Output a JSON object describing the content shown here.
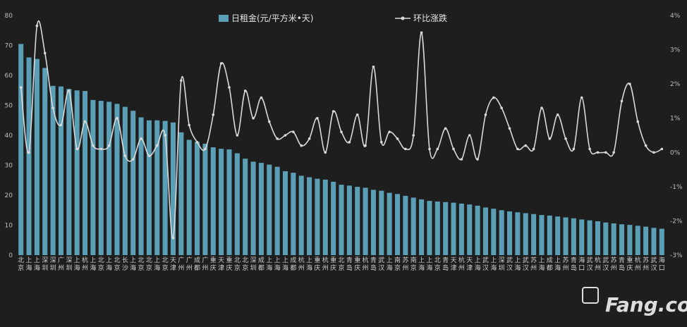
{
  "chart_data": {
    "type": "bar+line",
    "legend": [
      "日租金(元/平方米•天)",
      "环比涨跌"
    ],
    "legend_position": "top",
    "y_left": {
      "min": 0,
      "max": 80,
      "ticks": [
        "0",
        "10",
        "20",
        "30",
        "40",
        "50",
        "60",
        "70",
        "80"
      ]
    },
    "y_right": {
      "min": -3,
      "max": 4,
      "ticks": [
        "-3%",
        "-2%",
        "-1%",
        "0%",
        "1%",
        "2%",
        "3%",
        "4%"
      ]
    },
    "grid": false,
    "colors": {
      "bar": "#5b9fb6",
      "line": "#d9d9d9",
      "background": "#1e1e1e"
    },
    "categories": [
      "北京",
      "上海",
      "上海",
      "深圳",
      "深圳",
      "广州",
      "深圳",
      "上海",
      "杭州",
      "上海",
      "北京",
      "上海",
      "北京",
      "长沙",
      "上海",
      "北京",
      "北京",
      "上海",
      "北京",
      "天津",
      "广州",
      "广州",
      "成都",
      "广州",
      "重庆",
      "天津",
      "重庆",
      "北京",
      "北京",
      "深圳",
      "成都",
      "上海",
      "上海",
      "上海",
      "成都",
      "杭州",
      "上海",
      "重庆",
      "杭州",
      "重庆",
      "北京",
      "青岛",
      "重庆",
      "杭州",
      "青岛",
      "武汉",
      "上海",
      "南京",
      "苏州",
      "南京",
      "上海",
      "上海",
      "北京",
      "青岛",
      "天津",
      "杭州",
      "天津",
      "上海",
      "武汉",
      "上海",
      "深圳",
      "武汉",
      "上海",
      "武汉",
      "苏州",
      "上海",
      "成都",
      "上海",
      "苏州",
      "青岛",
      "海口",
      "武汉",
      "杭州",
      "武汉",
      "苏州",
      "青岛",
      "重庆",
      "杭州",
      "苏州",
      "武汉",
      "海口"
    ],
    "values": [
      70.5,
      66,
      65.5,
      62.5,
      56.5,
      56.3,
      55.5,
      55,
      54.8,
      51.8,
      51.5,
      51.2,
      50.5,
      49.5,
      48.2,
      46,
      45,
      45,
      44.8,
      44.3,
      41,
      38.5,
      37.8,
      37.2,
      36,
      35.5,
      35.3,
      34,
      32.2,
      31.2,
      30.8,
      30.2,
      29.5,
      28,
      27.5,
      26.5,
      26,
      25.5,
      25.2,
      24.5,
      23.5,
      23.2,
      22.8,
      22.5,
      21.8,
      21.5,
      20.8,
      20.4,
      19.8,
      19.2,
      18.6,
      18.1,
      17.9,
      17.7,
      17.5,
      17.2,
      16.9,
      16.5,
      15.9,
      15.5,
      15,
      14.6,
      14.3,
      14,
      13.7,
      13.4,
      13.2,
      12.9,
      12.6,
      12.3,
      11.9,
      11.6,
      11.3,
      10.9,
      10.6,
      10.3,
      10.1,
      9.8,
      9.5,
      9.1,
      8.8
    ],
    "pct_change": [
      1.9,
      0,
      3.7,
      2.9,
      1.3,
      0.8,
      1.8,
      0.1,
      0.9,
      0.2,
      0.1,
      0.2,
      1.0,
      -0.1,
      -0.2,
      0.4,
      -0.1,
      0.2,
      0.5,
      -2.5,
      2.1,
      0.8,
      0.3,
      0.1,
      1.1,
      2.6,
      1.9,
      0.5,
      1.8,
      1.0,
      1.6,
      0.9,
      0.4,
      0.5,
      0.6,
      0.2,
      0.4,
      1.0,
      0,
      1.2,
      0.6,
      0.3,
      1.1,
      0.2,
      2.5,
      0.3,
      0.6,
      0.4,
      0.1,
      0.5,
      3.5,
      0.1,
      0.1,
      0.7,
      0.1,
      -0.2,
      0.5,
      -0.2,
      1.1,
      1.6,
      1.3,
      0.7,
      0.1,
      0.2,
      0.1,
      1.3,
      0.4,
      1.1,
      0.4,
      0.1,
      1.6,
      0.1,
      0,
      0,
      0,
      1.5,
      2.0,
      0.9,
      0.2,
      0,
      0.1
    ]
  }
}
